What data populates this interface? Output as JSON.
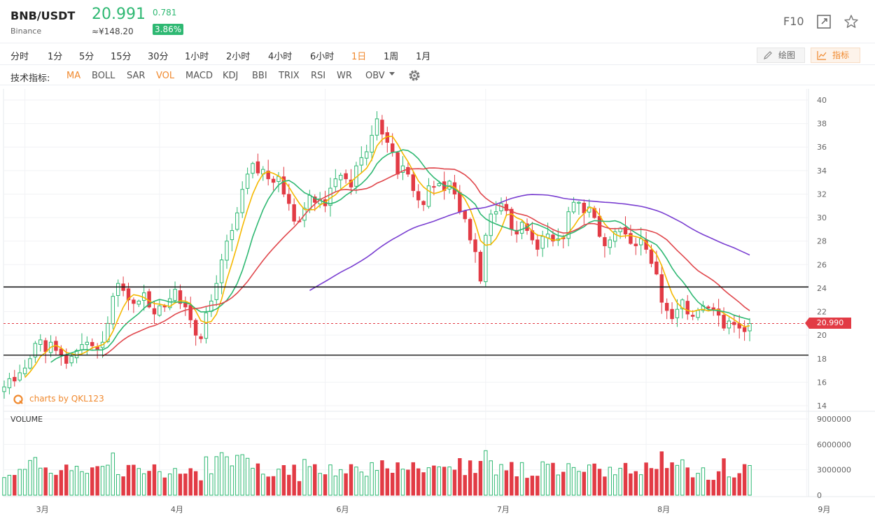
{
  "header": {
    "pair": "BNB/USDT",
    "exchange": "Binance",
    "price": "20.991",
    "cny_price": "≈¥148.20",
    "change": "0.781",
    "change_pct": "3.86%",
    "f10": "F10",
    "colors": {
      "up": "#2eb872",
      "down": "#e23b45",
      "accent": "#f0892e"
    }
  },
  "timeframes": [
    "分时",
    "1分",
    "5分",
    "15分",
    "30分",
    "1小时",
    "2小时",
    "4小时",
    "6小时",
    "1日",
    "1周",
    "1月"
  ],
  "active_timeframe": "1日",
  "tools": {
    "draw_label": "绘图",
    "indicator_label": "指标"
  },
  "indicators": {
    "title": "技术指标:",
    "items": [
      "MA",
      "BOLL",
      "SAR",
      "VOL",
      "MACD",
      "KDJ",
      "BBI",
      "TRIX",
      "RSI",
      "WR",
      "OBV"
    ],
    "active": [
      "MA",
      "VOL"
    ]
  },
  "chart_data": {
    "type": "candlestick",
    "title": "",
    "price_axis": {
      "min": 14,
      "max": 40,
      "ticks": [
        "40",
        "38",
        "36",
        "34",
        "32",
        "30",
        "28",
        "26",
        "24",
        "22",
        "20",
        "18",
        "16",
        "14"
      ]
    },
    "volume_axis": {
      "min": 0,
      "max": 9000000,
      "ticks": [
        "9000000",
        "6000000",
        "3000000",
        "0"
      ]
    },
    "x_tick_labels": [
      "3月",
      "4月",
      "6月",
      "7月",
      "8月",
      "9月"
    ],
    "horizontal_lines": [
      24.1,
      18.3
    ],
    "last_price": "20.990",
    "last_price_value": 20.99,
    "watermark": "charts by QKL123",
    "volume_title": "VOLUME",
    "grid": true,
    "series": [
      {
        "name": "close",
        "values": [
          15.6,
          16.3,
          16.1,
          16.8,
          17.2,
          18.0,
          19.3,
          19.6,
          18.6,
          19.4,
          18.7,
          18.3,
          17.6,
          18.2,
          18.7,
          19.2,
          19.4,
          19.1,
          18.8,
          19.4,
          21.0,
          23.3,
          24.4,
          23.8,
          23.0,
          22.7,
          22.9,
          23.6,
          22.4,
          21.8,
          22.5,
          22.4,
          23.1,
          23.9,
          22.7,
          22.4,
          21.3,
          20.0,
          19.7,
          21.9,
          22.9,
          24.4,
          26.4,
          28.0,
          28.9,
          30.4,
          32.4,
          33.7,
          34.6,
          33.8,
          34.1,
          33.3,
          33.0,
          33.5,
          32.0,
          31.2,
          29.7,
          29.7,
          30.8,
          31.9,
          31.3,
          31.6,
          31.0,
          32.5,
          33.3,
          33.6,
          33.3,
          32.6,
          34.4,
          35.1,
          35.6,
          37.0,
          38.4,
          37.1,
          36.4,
          35.6,
          33.7,
          34.4,
          33.7,
          32.3,
          31.5,
          31.1,
          32.7,
          32.6,
          32.9,
          32.3,
          33.1,
          32.0,
          30.5,
          29.9,
          28.1,
          27.1,
          24.6,
          28.5,
          30.3,
          30.5,
          31.2,
          30.6,
          29.0,
          28.6,
          29.6,
          28.9,
          28.1,
          27.3,
          28.4,
          28.6,
          28.0,
          28.2,
          28.2,
          30.5,
          31.3,
          31.3,
          30.4,
          30.9,
          30.0,
          28.4,
          27.6,
          28.1,
          28.8,
          29.1,
          28.6,
          27.8,
          27.6,
          28.2,
          27.3,
          26.1,
          25.2,
          22.8,
          22.1,
          21.4,
          22.2,
          23.0,
          21.8,
          21.6,
          22.1,
          22.5,
          22.3,
          22.2,
          21.7,
          20.6,
          21.2,
          20.9,
          20.6,
          20.3,
          20.99
        ]
      }
    ]
  }
}
